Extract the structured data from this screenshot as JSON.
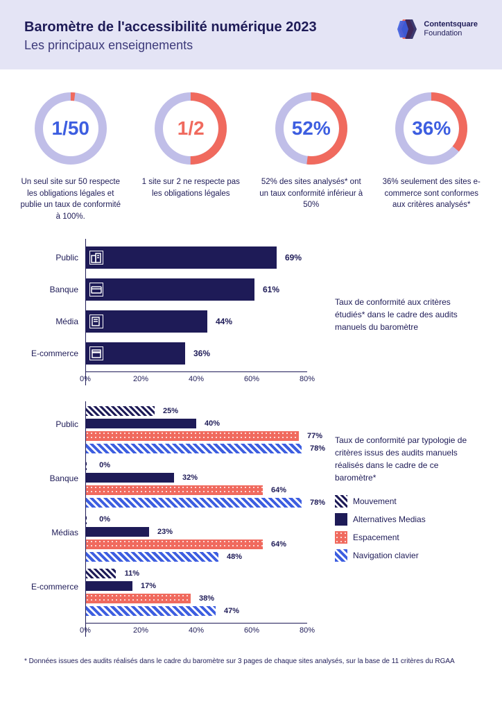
{
  "header": {
    "title": "Baromètre de l'accessibilité numérique 2023",
    "subtitle": "Les principaux enseignements",
    "logo_name": "Contentsquare",
    "logo_sub": "Foundation"
  },
  "donuts": [
    {
      "value": "1/50",
      "pct": 2,
      "ring": "#c0bee8",
      "accent": "#f06a5e",
      "text_color": "#3d5ee0",
      "desc": "Un seul site sur 50 respecte les obligations légales et publie un taux de conformité à 100%."
    },
    {
      "value": "1/2",
      "pct": 50,
      "ring": "#c0bee8",
      "accent": "#f06a5e",
      "text_color": "#f06a5e",
      "desc": "1 site sur 2 ne respecte pas les obligations légales"
    },
    {
      "value": "52%",
      "pct": 52,
      "ring": "#c0bee8",
      "accent": "#f06a5e",
      "text_color": "#3d5ee0",
      "desc": "52% des sites analysés* ont un taux conformité inférieur à 50%"
    },
    {
      "value": "36%",
      "pct": 36,
      "ring": "#c0bee8",
      "accent": "#f06a5e",
      "text_color": "#3d5ee0",
      "desc": "36% seulement des sites e-commerce sont conformes aux critères analysés*"
    }
  ],
  "chart1": {
    "side_text": "Taux de conformité aux critères étudiés* dans le cadre des audits manuels du baromètre",
    "bar_color": "#1e1b57",
    "xmax": 80,
    "ticks": [
      0,
      20,
      40,
      60,
      80
    ],
    "rows": [
      {
        "label": "Public",
        "value": 69,
        "icon": "building"
      },
      {
        "label": "Banque",
        "value": 61,
        "icon": "card"
      },
      {
        "label": "Média",
        "value": 44,
        "icon": "news"
      },
      {
        "label": "E-commerce",
        "value": 36,
        "icon": "shop"
      }
    ]
  },
  "chart2": {
    "side_text": "Taux de conformité par typologie de critères issus des audits manuels réalisés dans le cadre de ce baromètre*",
    "xmax": 80,
    "ticks": [
      0,
      20,
      40,
      60,
      80
    ],
    "legend": [
      {
        "label": "Mouvement",
        "cls": "hatch-navy"
      },
      {
        "label": "Alternatives Medias",
        "cls": "solid-navy"
      },
      {
        "label": "Espacement",
        "cls": "dot-coral"
      },
      {
        "label": "Navigation clavier",
        "cls": "hatch-blue"
      }
    ],
    "groups": [
      {
        "label": "Public",
        "bars": [
          {
            "v": 25,
            "cls": "hatch-navy"
          },
          {
            "v": 40,
            "cls": "solid-navy"
          },
          {
            "v": 77,
            "cls": "dot-coral"
          },
          {
            "v": 78,
            "cls": "hatch-blue"
          }
        ]
      },
      {
        "label": "Banque",
        "bars": [
          {
            "v": 0,
            "cls": "hatch-navy"
          },
          {
            "v": 32,
            "cls": "solid-navy"
          },
          {
            "v": 64,
            "cls": "dot-coral"
          },
          {
            "v": 78,
            "cls": "hatch-blue"
          }
        ]
      },
      {
        "label": "Médias",
        "bars": [
          {
            "v": 0,
            "cls": "hatch-navy"
          },
          {
            "v": 23,
            "cls": "solid-navy"
          },
          {
            "v": 64,
            "cls": "dot-coral"
          },
          {
            "v": 48,
            "cls": "hatch-blue"
          }
        ]
      },
      {
        "label": "E-commerce",
        "bars": [
          {
            "v": 11,
            "cls": "hatch-navy"
          },
          {
            "v": 17,
            "cls": "solid-navy"
          },
          {
            "v": 38,
            "cls": "dot-coral"
          },
          {
            "v": 47,
            "cls": "hatch-blue"
          }
        ]
      }
    ]
  },
  "footnote": "* Données issues des audits réalisés dans le cadre du baromètre sur 3 pages de chaque sites analysés, sur la base de 11 critères du RGAA"
}
